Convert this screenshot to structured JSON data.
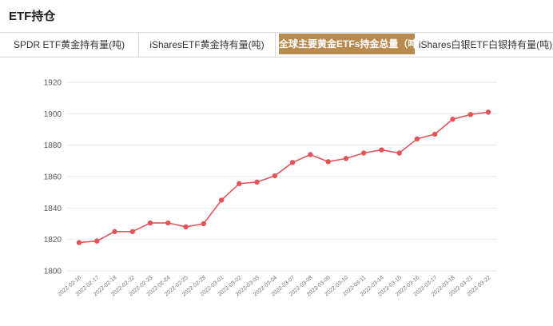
{
  "page": {
    "title": "ETF持仓"
  },
  "tabs": [
    {
      "label": "SPDR ETF黄金持有量(吨)",
      "active": false
    },
    {
      "label": "iSharesETF黄金持有量(吨)",
      "active": false
    },
    {
      "label": "全球主要黄金ETFs持金总量（吨）",
      "active": true
    },
    {
      "label": "iShares白银ETF白银持有量(吨)",
      "active": false
    }
  ],
  "chart_data": {
    "type": "line",
    "title": "",
    "xlabel": "",
    "ylabel": "",
    "ylim": [
      1800,
      1920
    ],
    "yticks": [
      1800,
      1820,
      1840,
      1860,
      1880,
      1900,
      1920
    ],
    "grid": true,
    "categories": [
      "2022-02-16",
      "2022-02-17",
      "2022-02-18",
      "2022-02-22",
      "2022-02-23",
      "2022-02-24",
      "2022-02-25",
      "2022-02-28",
      "2022-03-01",
      "2022-03-02",
      "2022-03-03",
      "2022-03-04",
      "2022-03-07",
      "2022-03-08",
      "2022-03-09",
      "2022-03-10",
      "2022-03-11",
      "2022-03-14",
      "2022-03-15",
      "2022-03-16",
      "2022-03-17",
      "2022-03-18",
      "2022-03-21",
      "2022-03-22"
    ],
    "series": [
      {
        "values": [
          1818,
          1819,
          1825,
          1825,
          1830.5,
          1830.5,
          1828,
          1830,
          1845,
          1855.5,
          1856.5,
          1860.5,
          1869,
          1874,
          1869.5,
          1871.5,
          1875,
          1877,
          1875,
          1884,
          1887,
          1896.5,
          1899.5,
          1901
        ]
      }
    ],
    "line_color": "#e0555a",
    "grid_color": "#eaeaea"
  }
}
